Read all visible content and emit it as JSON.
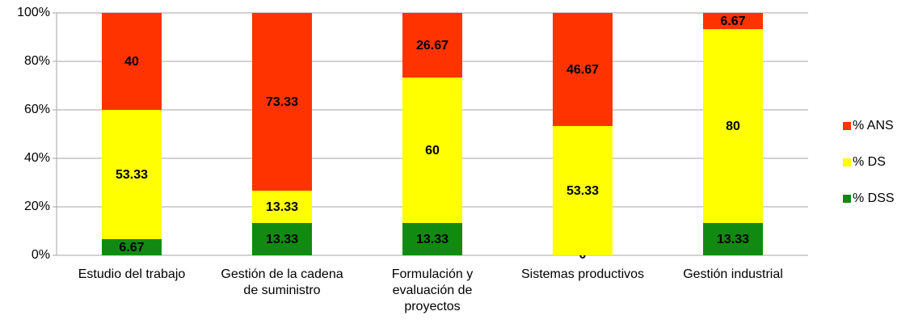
{
  "chart_data": {
    "type": "stacked_bar",
    "categories": [
      "Estudio del trabajo",
      "Gestión de la cadena de suministro",
      "Formulación y evaluación de proyectos",
      "Sistemas productivos",
      "Gestión industrial"
    ],
    "series": [
      {
        "name": "% DSS",
        "color": "#118a11",
        "values": [
          6.67,
          13.33,
          13.33,
          0,
          13.33
        ]
      },
      {
        "name": "% DS",
        "color": "#ffff00",
        "values": [
          53.33,
          13.33,
          60,
          53.33,
          80
        ]
      },
      {
        "name": "% ANS",
        "color": "#ff3300",
        "values": [
          40,
          73.33,
          26.67,
          46.67,
          6.67
        ]
      }
    ],
    "ylim": [
      0,
      100
    ],
    "yticks": [
      {
        "value": 0,
        "label": "0%"
      },
      {
        "value": 20,
        "label": "20%"
      },
      {
        "value": 40,
        "label": "40%"
      },
      {
        "value": 60,
        "label": "60%"
      },
      {
        "value": 80,
        "label": "80%"
      },
      {
        "value": 100,
        "label": "100%"
      }
    ],
    "grid": true,
    "legend": "right"
  }
}
